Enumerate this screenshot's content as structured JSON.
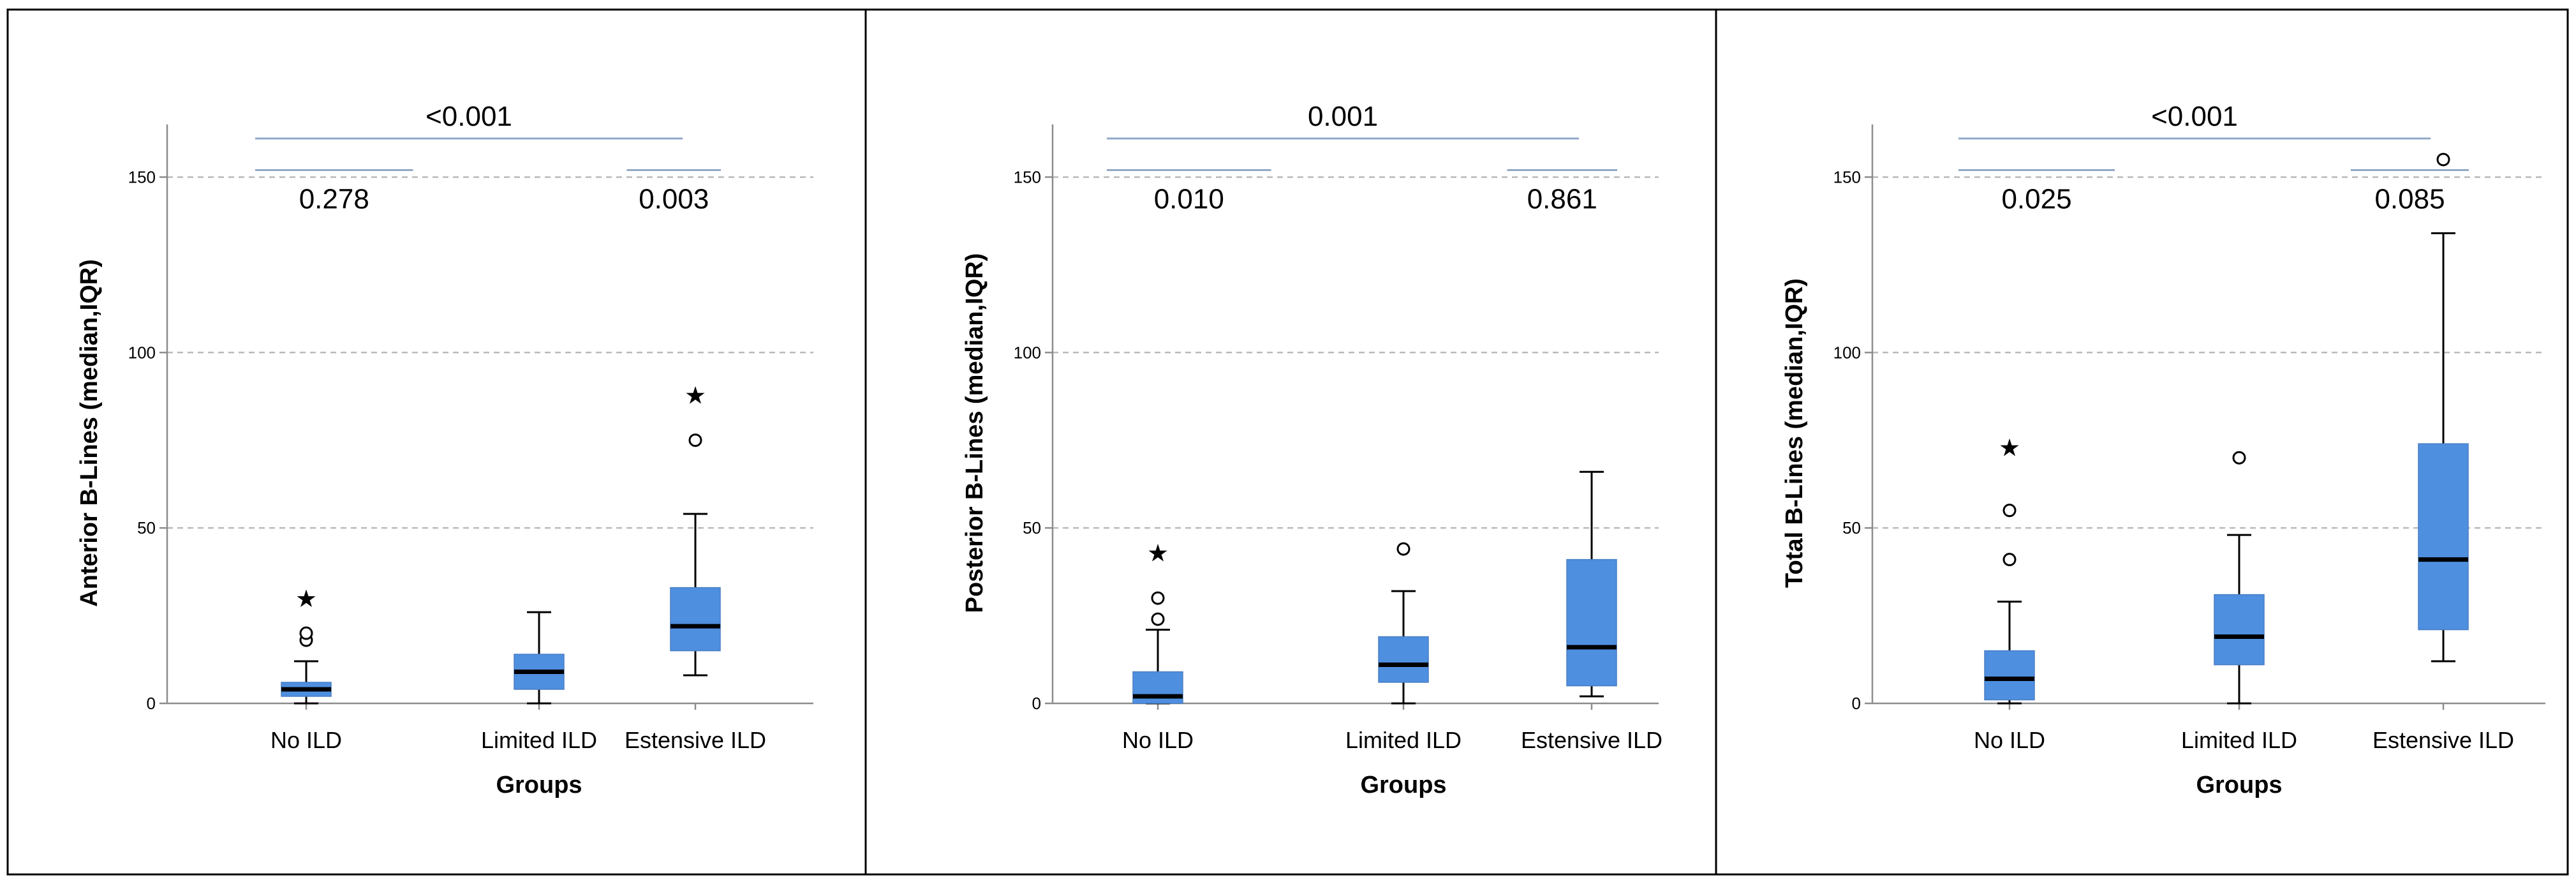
{
  "chart_data": [
    {
      "type": "boxplot",
      "xlabel": "Groups",
      "ylabel": "Anterior B-Lines (median,IQR)",
      "ylim": [
        0,
        165
      ],
      "yticks": [
        0,
        50,
        100,
        150
      ],
      "grid": "dashed horizontal at 50, 100, 150",
      "categories": [
        "No ILD",
        "Limited ILD",
        "Estensive ILD"
      ],
      "box_color": "#4f8fe0",
      "boxes": [
        {
          "whisker_low": 0,
          "q1": 2,
          "median": 4,
          "q3": 6,
          "whisker_high": 12,
          "outliers": [
            18,
            20
          ],
          "extremes": [
            30
          ]
        },
        {
          "whisker_low": 0,
          "q1": 4,
          "median": 9,
          "q3": 14,
          "whisker_high": 26,
          "outliers": [],
          "extremes": []
        },
        {
          "whisker_low": 8,
          "q1": 15,
          "median": 22,
          "q3": 33,
          "whisker_high": 54,
          "outliers": [
            75
          ],
          "extremes": [
            88
          ]
        }
      ],
      "comparisons": [
        {
          "from": 0,
          "to": 2,
          "label": "<0.001",
          "level": 161,
          "label_pos": "above"
        },
        {
          "from": 0,
          "to": 1,
          "label": "0.278",
          "level": 152,
          "label_pos": "below"
        },
        {
          "from": 1,
          "to": 2,
          "label": "0.003",
          "level": 152,
          "label_pos": "below"
        }
      ]
    },
    {
      "type": "boxplot",
      "xlabel": "Groups",
      "ylabel": "Posterior B-Lines (median,IQR)",
      "ylim": [
        0,
        165
      ],
      "yticks": [
        0,
        50,
        100,
        150
      ],
      "grid": "dashed horizontal at 50, 100, 150",
      "categories": [
        "No ILD",
        "Limited ILD",
        "Estensive ILD"
      ],
      "box_color": "#4f8fe0",
      "boxes": [
        {
          "whisker_low": 0,
          "q1": 0,
          "median": 2,
          "q3": 9,
          "whisker_high": 21,
          "outliers": [
            24,
            30
          ],
          "extremes": [
            43
          ]
        },
        {
          "whisker_low": 0,
          "q1": 6,
          "median": 11,
          "q3": 19,
          "whisker_high": 32,
          "outliers": [
            44
          ],
          "extremes": []
        },
        {
          "whisker_low": 2,
          "q1": 5,
          "median": 16,
          "q3": 41,
          "whisker_high": 66,
          "outliers": [],
          "extremes": []
        }
      ],
      "comparisons": [
        {
          "from": 0,
          "to": 2,
          "label": "0.001",
          "level": 161,
          "label_pos": "above"
        },
        {
          "from": 0,
          "to": 1,
          "label": "0.010",
          "level": 152,
          "label_pos": "below"
        },
        {
          "from": 1,
          "to": 2,
          "label": "0.861",
          "level": 152,
          "label_pos": "below"
        }
      ]
    },
    {
      "type": "boxplot",
      "xlabel": "Groups",
      "ylabel": "Total B-Lines (median,IQR)",
      "ylim": [
        0,
        165
      ],
      "yticks": [
        0,
        50,
        100,
        150
      ],
      "grid": "dashed horizontal at 50, 100, 150",
      "categories": [
        "No ILD",
        "Limited ILD",
        "Estensive ILD"
      ],
      "box_color": "#4f8fe0",
      "boxes": [
        {
          "whisker_low": 0,
          "q1": 1,
          "median": 7,
          "q3": 15,
          "whisker_high": 29,
          "outliers": [
            41,
            55
          ],
          "extremes": [
            73
          ]
        },
        {
          "whisker_low": 0,
          "q1": 11,
          "median": 19,
          "q3": 31,
          "whisker_high": 48,
          "outliers": [
            70
          ],
          "extremes": []
        },
        {
          "whisker_low": 12,
          "q1": 21,
          "median": 41,
          "q3": 74,
          "whisker_high": 134,
          "outliers": [
            155
          ],
          "extremes": []
        }
      ],
      "comparisons": [
        {
          "from": 0,
          "to": 2,
          "label": "<0.001",
          "level": 161,
          "label_pos": "above"
        },
        {
          "from": 0,
          "to": 1,
          "label": "0.025",
          "level": 152,
          "label_pos": "below"
        },
        {
          "from": 1,
          "to": 2,
          "label": "0.085",
          "level": 152,
          "label_pos": "below"
        }
      ]
    }
  ]
}
